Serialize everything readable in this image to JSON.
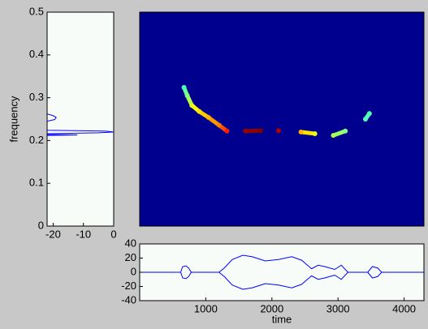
{
  "chart_data": [
    {
      "type": "line",
      "y_label": "frequency",
      "xlim": [
        -22,
        0
      ],
      "xticks": [
        -20,
        -10,
        0
      ],
      "ylim": [
        0,
        0.5
      ],
      "yticks": [
        0,
        0.1,
        0.2,
        0.3,
        0.4,
        0.5
      ],
      "background": "#f8fcf8",
      "series": [
        {
          "color": "#0000ff",
          "x": [
            -22,
            -20,
            -19,
            -19.5,
            -22,
            -22,
            -3,
            0,
            -5,
            -22,
            -22,
            -12,
            -22
          ],
          "values": [
            0.262,
            0.258,
            0.254,
            0.249,
            0.245,
            0.224,
            0.222,
            0.22,
            0.218,
            0.216,
            0.214,
            0.213,
            0.212
          ]
        }
      ]
    },
    {
      "type": "scatter",
      "xlim": [
        0,
        4300
      ],
      "ylim": [
        0,
        0.5
      ],
      "background": "#00008f",
      "x": [
        670,
        720,
        790,
        900,
        1040,
        1200,
        1320,
        1600,
        1830,
        2100,
        2440,
        2650,
        2930,
        3110,
        3415,
        3475
      ],
      "values": [
        0.324,
        0.305,
        0.282,
        0.268,
        0.254,
        0.236,
        0.222,
        0.222,
        0.223,
        0.223,
        0.22,
        0.216,
        0.212,
        0.222,
        0.25,
        0.263
      ],
      "intensity": [
        0.45,
        0.5,
        0.6,
        0.65,
        0.7,
        0.75,
        0.85,
        0.97,
        1.0,
        0.95,
        0.7,
        0.6,
        0.55,
        0.5,
        0.45,
        0.45
      ]
    },
    {
      "type": "line",
      "x_label": "time",
      "xlim": [
        0,
        4300
      ],
      "xticks": [
        1000,
        2000,
        3000,
        4000
      ],
      "ylim": [
        -40,
        40
      ],
      "yticks": [
        -40,
        -20,
        0,
        20,
        40
      ],
      "background": "#f8fcf8",
      "x": [
        0,
        620,
        650,
        700,
        740,
        780,
        1200,
        1280,
        1400,
        1560,
        1700,
        1800,
        1900,
        2100,
        2300,
        2450,
        2600,
        2700,
        2800,
        2950,
        3050,
        3150,
        3450,
        3520,
        3600,
        3660,
        4300
      ],
      "series": [
        {
          "color": "#0000ff",
          "values": [
            0,
            0,
            8,
            9,
            6,
            0,
            0,
            6,
            18,
            24,
            22,
            19,
            16,
            18,
            22,
            17,
            5,
            10,
            8,
            4,
            10,
            0,
            0,
            8,
            6,
            0,
            0
          ]
        },
        {
          "color": "#0000ff",
          "values": [
            0,
            0,
            -8,
            -9,
            -6,
            0,
            0,
            -6,
            -18,
            -24,
            -22,
            -19,
            -16,
            -18,
            -22,
            -17,
            -5,
            -10,
            -8,
            -4,
            -10,
            0,
            0,
            -8,
            -6,
            0,
            0
          ]
        }
      ]
    }
  ]
}
